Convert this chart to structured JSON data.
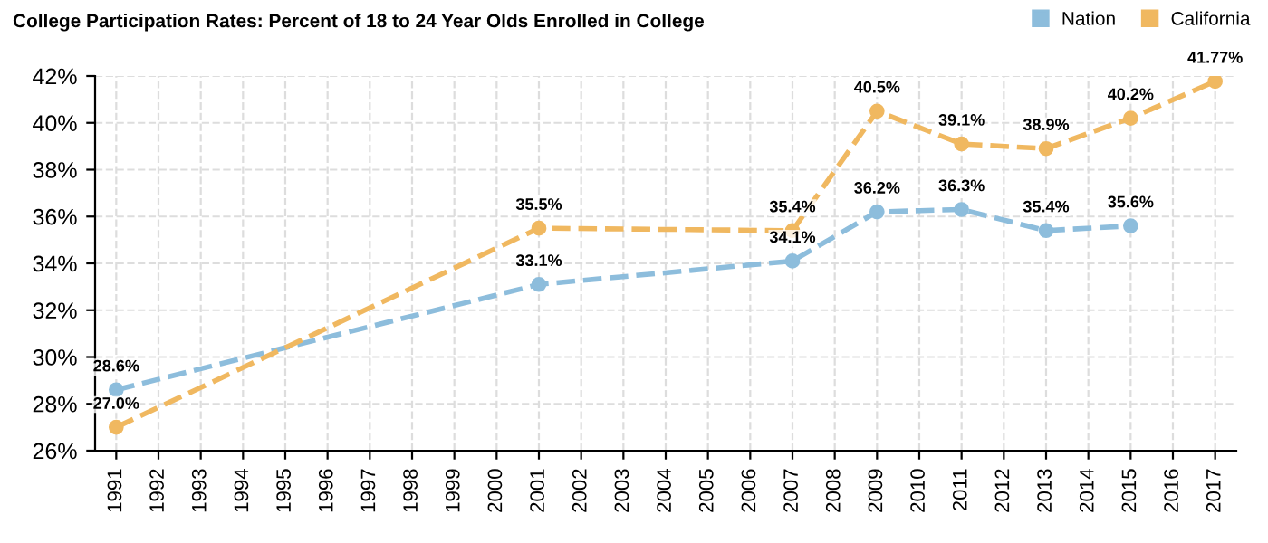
{
  "chart_data": {
    "type": "line",
    "title": "College Participation Rates: Percent of 18 to 24 Year Olds Enrolled in College",
    "series": [
      {
        "name": "Nation",
        "color": "#8dbddc",
        "x": [
          1991,
          2001,
          2007,
          2009,
          2011,
          2013,
          2015
        ],
        "values": [
          28.6,
          33.1,
          34.1,
          36.2,
          36.3,
          35.4,
          35.6
        ],
        "value_labels": [
          "28.6%",
          "33.1%",
          "34.1%",
          "36.2%",
          "36.3%",
          "35.4%",
          "35.6%"
        ]
      },
      {
        "name": "California",
        "color": "#f0b860",
        "x": [
          1991,
          2001,
          2007,
          2009,
          2011,
          2013,
          2015,
          2017
        ],
        "values": [
          27.0,
          35.5,
          35.4,
          40.5,
          39.1,
          38.9,
          40.2,
          41.77
        ],
        "value_labels": [
          "27.0%",
          "35.5%",
          "35.4%",
          "40.5%",
          "39.1%",
          "38.9%",
          "40.2%",
          "41.77%"
        ]
      }
    ],
    "xlim": [
      1990.5,
      2017.5
    ],
    "xticks": [
      1991,
      1992,
      1993,
      1994,
      1995,
      1996,
      1997,
      1998,
      1999,
      2000,
      2001,
      2002,
      2003,
      2004,
      2005,
      2006,
      2007,
      2008,
      2009,
      2010,
      2011,
      2012,
      2013,
      2014,
      2015,
      2016,
      2017
    ],
    "ylim": [
      26,
      42
    ],
    "yticks": [
      {
        "value": 26,
        "label": "26%"
      },
      {
        "value": 28,
        "label": "28%"
      },
      {
        "value": 30,
        "label": "30%"
      },
      {
        "value": 32,
        "label": "32%"
      },
      {
        "value": 34,
        "label": "34%"
      },
      {
        "value": 36,
        "label": "36%"
      },
      {
        "value": 38,
        "label": "38%"
      },
      {
        "value": 40,
        "label": "40%"
      },
      {
        "value": 42,
        "label": "42%"
      }
    ],
    "grid": true,
    "legend": "top right",
    "marker": "circle",
    "line_style": "dashed"
  }
}
